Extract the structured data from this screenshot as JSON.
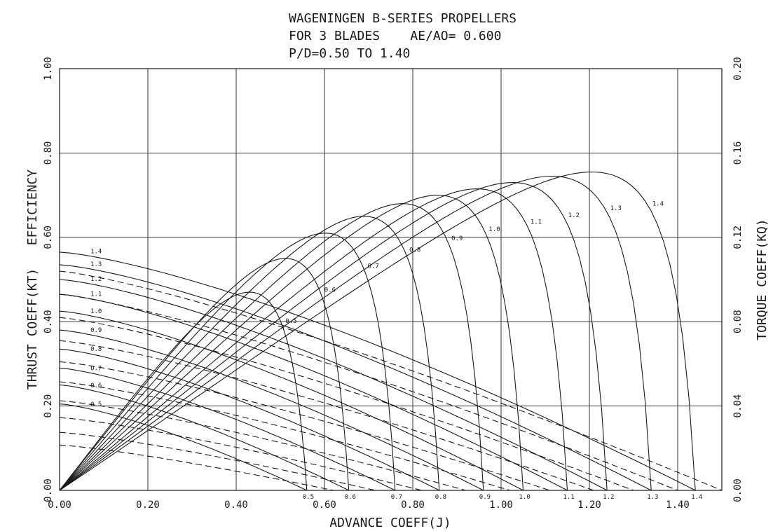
{
  "chart_data": {
    "type": "line",
    "title_lines": [
      "WAGENINGEN B-SERIES PROPELLERS",
      "FOR 3 BLADES    AE/AO= 0.600",
      "P/D=0.50 TO 1.40"
    ],
    "xlabel": "ADVANCE COEFF(J)",
    "ylabel_left": "THRUST COEFF(KT)   EFFICIENCY",
    "ylabel_right": "TORQUE COEFF(KQ)",
    "xlim": [
      0,
      1.5
    ],
    "ylim_left": [
      0,
      1.0
    ],
    "ylim_right": [
      0,
      0.2
    ],
    "x_ticks": [
      "0.00",
      "0.20",
      "0.40",
      "0.60",
      "0.80",
      "1.00",
      "1.20",
      "1.40"
    ],
    "y_left_ticks": [
      "0.00",
      "0.20",
      "0.40",
      "0.60",
      "0.80",
      "1.00"
    ],
    "y_right_ticks": [
      "0.00",
      "0.04",
      "0.08",
      "0.12",
      "0.16",
      "0.20"
    ],
    "grid": true,
    "series": [
      {
        "name": "0.5",
        "kt_j0": 0.205,
        "j_zero": 0.56,
        "kq_j0": 0.0215,
        "eta_max": 0.47,
        "eta_jmax": 0.39
      },
      {
        "name": "0.6",
        "kt_j0": 0.25,
        "j_zero": 0.655,
        "kq_j0": 0.0275,
        "eta_max": 0.55,
        "eta_jmax": 0.5
      },
      {
        "name": "0.7",
        "kt_j0": 0.29,
        "j_zero": 0.76,
        "kq_j0": 0.0345,
        "eta_max": 0.61,
        "eta_jmax": 0.58
      },
      {
        "name": "0.8",
        "kt_j0": 0.335,
        "j_zero": 0.86,
        "kq_j0": 0.0425,
        "eta_max": 0.65,
        "eta_jmax": 0.66
      },
      {
        "name": "0.9",
        "kt_j0": 0.38,
        "j_zero": 0.96,
        "kq_j0": 0.0515,
        "eta_max": 0.68,
        "eta_jmax": 0.76
      },
      {
        "name": "1.0",
        "kt_j0": 0.425,
        "j_zero": 1.05,
        "kq_j0": 0.061,
        "eta_max": 0.7,
        "eta_jmax": 0.85
      },
      {
        "name": "1.1",
        "kt_j0": 0.465,
        "j_zero": 1.15,
        "kq_j0": 0.071,
        "eta_max": 0.715,
        "eta_jmax": 0.95
      },
      {
        "name": "1.2",
        "kt_j0": 0.5,
        "j_zero": 1.24,
        "kq_j0": 0.082,
        "eta_max": 0.73,
        "eta_jmax": 1.04
      },
      {
        "name": "1.3",
        "kt_j0": 0.535,
        "j_zero": 1.34,
        "kq_j0": 0.093,
        "eta_max": 0.745,
        "eta_jmax": 1.13
      },
      {
        "name": "1.4",
        "kt_j0": 0.565,
        "j_zero": 1.44,
        "kq_j0": 0.104,
        "eta_max": 0.755,
        "eta_jmax": 1.23
      }
    ]
  }
}
